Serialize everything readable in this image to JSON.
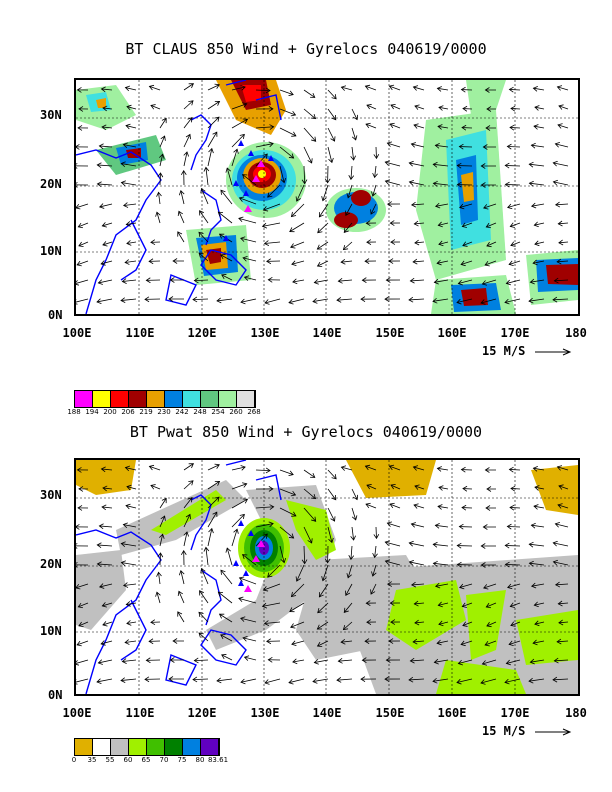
{
  "top_panel": {
    "title": "BT CLAUS 850 Wind + Gyrelocs 040619/0000",
    "lat_labels": [
      "30N",
      "20N",
      "10N",
      "0N"
    ],
    "lon_labels": [
      "100E",
      "110E",
      "120E",
      "130E",
      "140E",
      "150E",
      "160E",
      "170E",
      "180"
    ],
    "vector_scale_label": "15 M/S",
    "legend_colors": [
      "#ff00ff",
      "#ffff00",
      "#ff0000",
      "#a00000",
      "#e8a000",
      "#0080e0",
      "#40e0e0",
      "#60c880",
      "#a0f0a0",
      "#e0e0e0"
    ],
    "legend_ticks": [
      "188",
      "194",
      "200",
      "206",
      "219",
      "230",
      "242",
      "248",
      "254",
      "260",
      "268"
    ]
  },
  "bottom_panel": {
    "title": "BT Pwat 850 Wind + Gyrelocs 040619/0000",
    "lat_labels": [
      "30N",
      "20N",
      "10N",
      "0N"
    ],
    "lon_labels": [
      "100E",
      "110E",
      "120E",
      "130E",
      "140E",
      "150E",
      "160E",
      "170E",
      "180"
    ],
    "vector_scale_label": "15 M/S",
    "legend_colors": [
      "#e0b000",
      "#ffffff",
      "#c0c0c0",
      "#a0f000",
      "#40c000",
      "#008000",
      "#0080e0",
      "#6000c0"
    ],
    "legend_ticks": [
      "0",
      "35",
      "55",
      "60",
      "65",
      "70",
      "75",
      "80",
      "83.61"
    ]
  },
  "colors": {
    "coastline": "#0000ff",
    "marker_magenta": "#ff00ff",
    "marker_blue": "#0000ff"
  }
}
